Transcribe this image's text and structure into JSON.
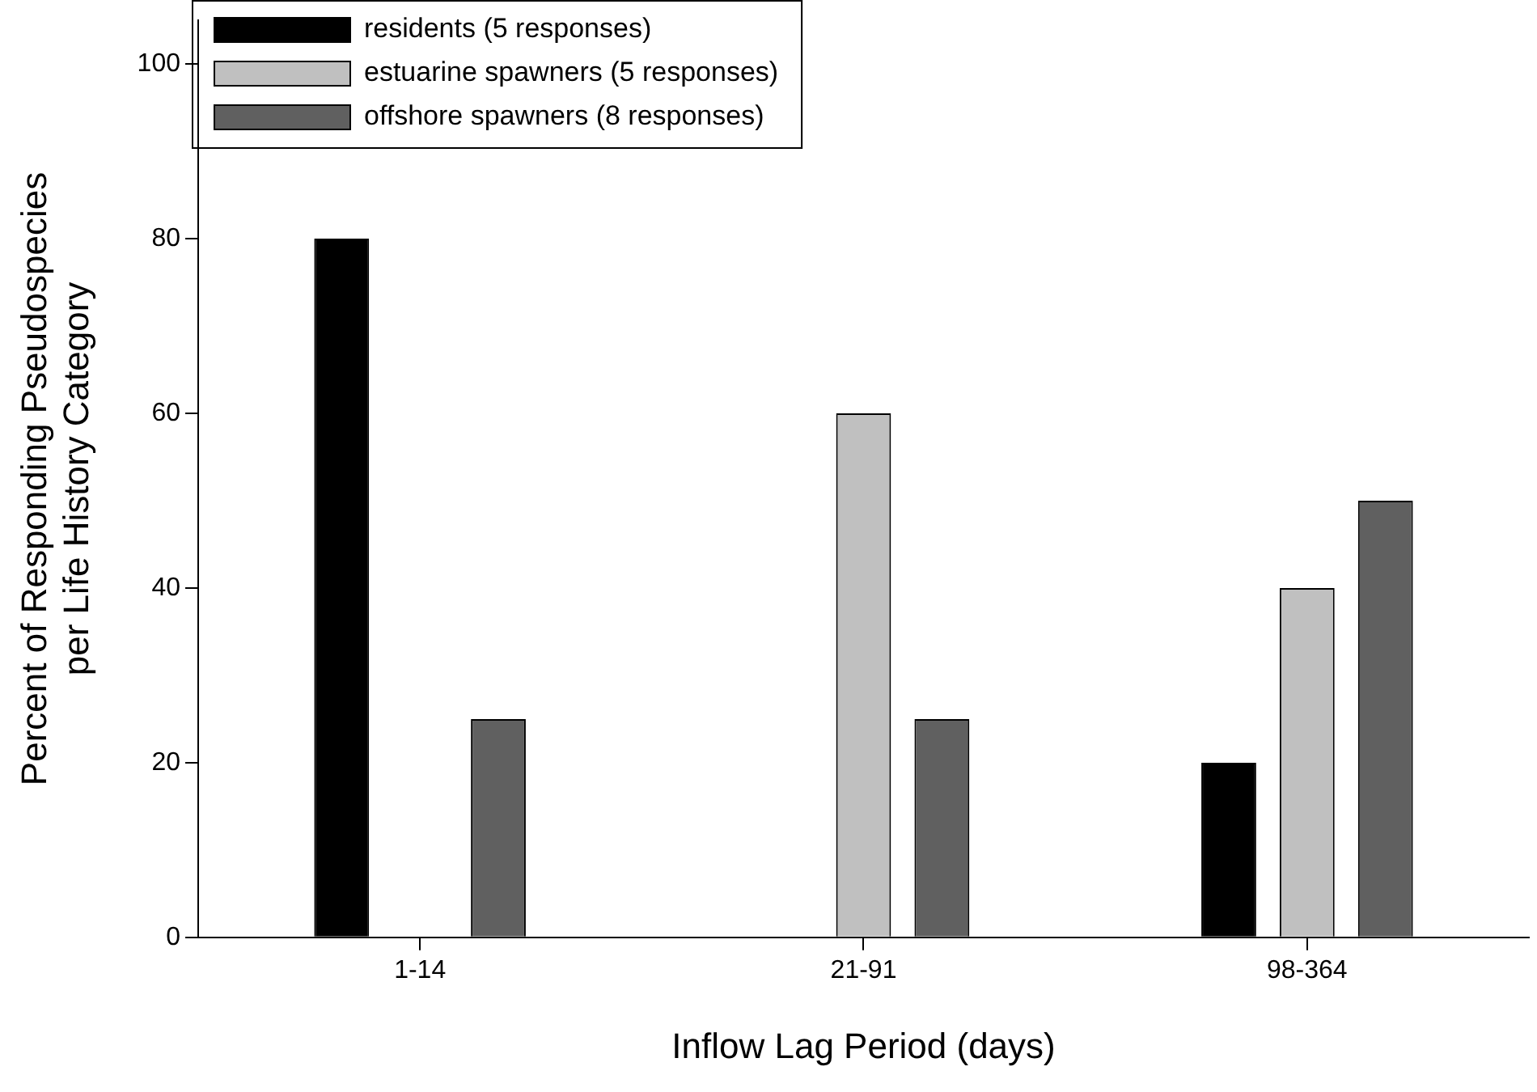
{
  "chart_data": {
    "type": "bar",
    "xlabel": "Inflow Lag Period (days)",
    "ylabel": [
      "Percent of Responding Pseudospecies",
      "per Life History Category"
    ],
    "categories": [
      "1-14",
      "21-91",
      "98-364"
    ],
    "series": [
      {
        "name": "residents (5 responses)",
        "color": "#000000",
        "values": [
          80,
          0,
          20
        ]
      },
      {
        "name": "estuarine spawners (5 responses)",
        "color": "#c0c0c0",
        "values": [
          0,
          60,
          40
        ]
      },
      {
        "name": "offshore spawners (8 responses)",
        "color": "#606060",
        "values": [
          25,
          25,
          50
        ]
      }
    ],
    "ylim": [
      0,
      105
    ],
    "yticks": [
      0,
      20,
      40,
      60,
      80,
      100
    ],
    "grid": false,
    "legend": "top left"
  }
}
